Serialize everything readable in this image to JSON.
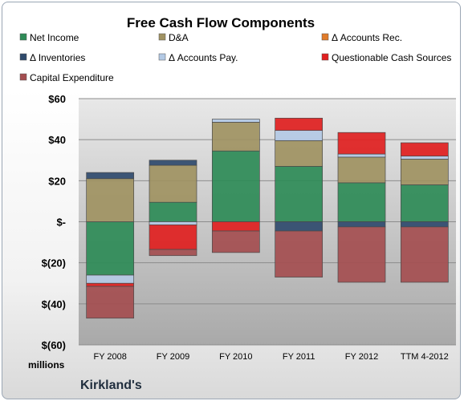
{
  "chart_data": {
    "type": "bar",
    "stacked": true,
    "title": "Free Cash Flow Components",
    "categories": [
      "FY 2008",
      "FY 2009",
      "FY 2010",
      "FY 2011",
      "FY 2012",
      "TTM 4-2012"
    ],
    "y_unit_label": "millions",
    "ylim": [
      -60,
      60
    ],
    "yticks": [
      60,
      40,
      20,
      0,
      -20,
      -40,
      -60
    ],
    "ytick_labels": [
      "$60",
      "$40",
      "$20",
      "$-",
      "$(20)",
      "$(40)",
      "$(60)"
    ],
    "grid": true,
    "legend_position": "top",
    "series": [
      {
        "name": "Net Income",
        "color": "#2e8b57",
        "values": [
          -26,
          9.5,
          34.5,
          27,
          19,
          18
        ]
      },
      {
        "name": "D&A",
        "color": "#a09262",
        "values": [
          21,
          18,
          14,
          12.5,
          12.5,
          12.5
        ]
      },
      {
        "name": "Δ Accounts Rec.",
        "color": "#e07b2a",
        "values": [
          0,
          0,
          0,
          0,
          0,
          0
        ]
      },
      {
        "name": "Δ Inventories",
        "color": "#2f4a6c",
        "values": [
          3,
          2.5,
          0,
          -4.5,
          -2.5,
          -2.5
        ]
      },
      {
        "name": "Δ Accounts Pay.",
        "color": "#b3c9e4",
        "values": [
          -4,
          -1.5,
          1.5,
          5,
          1.5,
          1.5
        ]
      },
      {
        "name": "Questionable Cash Sources",
        "color": "#e02020",
        "values": [
          -1.5,
          -12,
          -4.5,
          6,
          10.5,
          6.5
        ]
      },
      {
        "name": "Capital Expenditure",
        "color": "#a44e50",
        "values": [
          -15.5,
          -3,
          -10.5,
          -22.5,
          -27,
          -27
        ]
      }
    ],
    "footer": "Kirkland's"
  }
}
